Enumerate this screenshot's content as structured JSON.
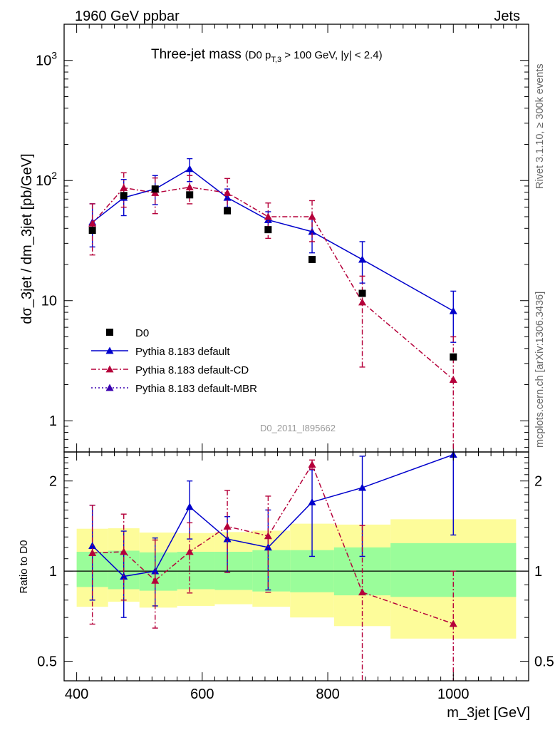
{
  "header": {
    "left": "1960 GeV ppbar",
    "right": "Jets"
  },
  "side_labels": {
    "rivet": "Rivet 3.1.10, ≥ 300k events",
    "mcplots": "mcplots.cern.ch [arXiv:1306.3436]"
  },
  "title": {
    "main": "Three-jet mass",
    "sub_prefix": "(D0 p",
    "sub_subscript": "T,3",
    "sub_suffix": " > 100 GeV, |y| < 2.4)"
  },
  "watermark": "D0_2011_I895662",
  "chart_data": [
    {
      "type": "scatter",
      "panel": "main",
      "title": "Three-jet mass (D0 p_T,3 > 100 GeV, |y| < 2.4)",
      "ylabel": "dσ_3jet / dm_3jet [pb/GeV]",
      "yscale": "log",
      "xlim": [
        380,
        1120
      ],
      "ylim": [
        0.55,
        2000
      ],
      "y_ticks": [
        {
          "value": 1,
          "label": "1"
        },
        {
          "value": 10,
          "label": "10"
        },
        {
          "value": 100,
          "label": "10",
          "exp": "2"
        },
        {
          "value": 1000,
          "label": "10",
          "exp": "3"
        }
      ],
      "legend_position": "lower-left",
      "series": [
        {
          "name": "D0",
          "style": "data",
          "color": "#000000",
          "x": [
            425,
            475,
            525,
            580,
            640,
            705,
            775,
            855,
            1000
          ],
          "y": [
            38.5,
            75,
            85,
            76,
            56,
            39,
            22,
            11.5,
            3.4
          ]
        },
        {
          "name": "Pythia 8.183 default",
          "style": "solid",
          "color": "#0000cc",
          "x": [
            425,
            475,
            525,
            580,
            640,
            705,
            775,
            855,
            1000
          ],
          "y": [
            45,
            72,
            85,
            125,
            72,
            47,
            37.5,
            22,
            8.2
          ],
          "err_up": [
            64,
            102,
            110,
            152,
            85,
            55,
            48,
            31,
            12
          ],
          "err_down": [
            28,
            51,
            63,
            98,
            60,
            37,
            25,
            14,
            4.5
          ]
        },
        {
          "name": "Pythia 8.183 default-CD",
          "style": "dashdot",
          "color": "#b5003a",
          "x": [
            425,
            475,
            525,
            580,
            640,
            705,
            775,
            855,
            1000
          ],
          "y": [
            44,
            87,
            79,
            88,
            79,
            50,
            50,
            9.7,
            2.2
          ],
          "err_up": [
            64,
            116,
            105,
            110,
            104,
            65,
            68,
            16,
            5
          ],
          "err_down": [
            24,
            60,
            53,
            64,
            53,
            33,
            31,
            2.8,
            0.5
          ]
        },
        {
          "name": "Pythia 8.183 default-MBR",
          "style": "dotted",
          "color": "#3a00b0",
          "x": [],
          "y": []
        }
      ]
    },
    {
      "type": "scatter",
      "panel": "ratio",
      "xlabel": "m_3jet [GeV]",
      "ylabel": "Ratio to D0",
      "yscale": "log",
      "xlim": [
        380,
        1120
      ],
      "ylim": [
        0.43,
        2.5
      ],
      "x_ticks": [
        400,
        600,
        800,
        1000
      ],
      "y_ticks": [
        {
          "value": 0.5,
          "label": "0.5"
        },
        {
          "value": 1,
          "label": "1"
        },
        {
          "value": 2,
          "label": "2"
        }
      ],
      "reference_line": 1,
      "bands": [
        {
          "x_min": 400,
          "x_max": 450,
          "inner_low": 0.885,
          "inner_high": 1.16,
          "outer_low": 0.76,
          "outer_high": 1.385
        },
        {
          "x_min": 450,
          "x_max": 500,
          "inner_low": 0.87,
          "inner_high": 1.17,
          "outer_low": 0.79,
          "outer_high": 1.39
        },
        {
          "x_min": 500,
          "x_max": 560,
          "inner_low": 0.86,
          "inner_high": 1.155,
          "outer_low": 0.755,
          "outer_high": 1.345
        },
        {
          "x_min": 560,
          "x_max": 620,
          "inner_low": 0.87,
          "inner_high": 1.16,
          "outer_low": 0.765,
          "outer_high": 1.34
        },
        {
          "x_min": 620,
          "x_max": 680,
          "inner_low": 0.865,
          "inner_high": 1.16,
          "outer_low": 0.775,
          "outer_high": 1.35
        },
        {
          "x_min": 680,
          "x_max": 740,
          "inner_low": 0.855,
          "inner_high": 1.175,
          "outer_low": 0.76,
          "outer_high": 1.365
        },
        {
          "x_min": 740,
          "x_max": 810,
          "inner_low": 0.85,
          "inner_high": 1.175,
          "outer_low": 0.7,
          "outer_high": 1.44
        },
        {
          "x_min": 810,
          "x_max": 900,
          "inner_low": 0.83,
          "inner_high": 1.2,
          "outer_low": 0.655,
          "outer_high": 1.43
        },
        {
          "x_min": 900,
          "x_max": 1100,
          "inner_low": 0.82,
          "inner_high": 1.24,
          "outer_low": 0.595,
          "outer_high": 1.49
        }
      ],
      "series": [
        {
          "name": "Pythia 8.183 default",
          "style": "solid",
          "color": "#0000cc",
          "x": [
            425,
            475,
            525,
            580,
            640,
            705,
            775,
            855,
            1000
          ],
          "y": [
            1.215,
            0.96,
            1.0,
            1.64,
            1.28,
            1.2,
            1.7,
            1.9,
            2.45
          ],
          "err_up": [
            1.66,
            1.36,
            1.29,
            2.0,
            1.52,
            1.6,
            2.18,
            2.42,
            2.55
          ],
          "err_down": [
            0.8,
            0.7,
            0.765,
            1.28,
            0.99,
            0.865,
            1.12,
            1.12,
            1.32
          ]
        },
        {
          "name": "Pythia 8.183 default-CD",
          "style": "dashdot",
          "color": "#b5003a",
          "x": [
            425,
            475,
            525,
            580,
            640,
            705,
            775,
            855,
            1000
          ],
          "y": [
            1.15,
            1.16,
            0.93,
            1.16,
            1.41,
            1.31,
            2.27,
            0.85,
            0.667
          ],
          "err_up": [
            1.66,
            1.55,
            1.27,
            1.45,
            1.86,
            1.78,
            2.35,
            1.42,
            1.0
          ],
          "err_down": [
            0.665,
            0.8,
            0.645,
            0.845,
            0.99,
            0.85,
            2.19,
            0.43,
            0.43
          ]
        }
      ]
    }
  ]
}
